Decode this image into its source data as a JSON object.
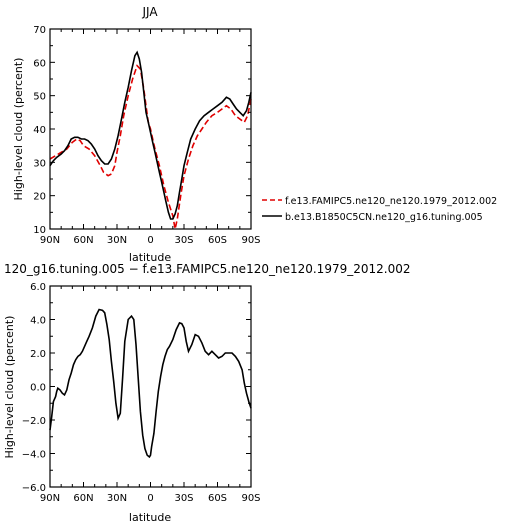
{
  "chart_data": [
    {
      "type": "line",
      "title": "JJA",
      "xlabel": "latitude",
      "ylabel": "High-level cloud (percent)",
      "xlim": [
        90,
        -90
      ],
      "ylim": [
        10,
        70
      ],
      "x_ticks": [
        {
          "value": 90,
          "label": "90N"
        },
        {
          "value": 60,
          "label": "60N"
        },
        {
          "value": 30,
          "label": "30N"
        },
        {
          "value": 0,
          "label": "0"
        },
        {
          "value": -30,
          "label": "30S"
        },
        {
          "value": -60,
          "label": "60S"
        },
        {
          "value": -90,
          "label": "90S"
        }
      ],
      "y_ticks": [
        10,
        20,
        30,
        40,
        50,
        60,
        70
      ],
      "y_tick_labels": [
        "10",
        "20",
        "30",
        "40",
        "50",
        "60",
        "70"
      ],
      "legend_position": "right",
      "series": [
        {
          "name": "f.e13.FAMIPC5.ne120_ne120.1979_2012.002",
          "color": "#e00000",
          "dash": "dashed",
          "x": [
            90,
            85,
            80,
            75,
            70,
            66,
            63,
            60,
            55,
            50,
            45,
            42,
            38,
            35,
            32,
            30,
            27,
            24,
            20,
            16,
            12,
            9,
            6,
            4,
            2,
            0,
            -2,
            -4,
            -8,
            -12,
            -16,
            -20,
            -22,
            -24,
            -27,
            -30,
            -34,
            -38,
            -42,
            -46,
            -50,
            -55,
            -60,
            -64,
            -68,
            -72,
            -76,
            -80,
            -84,
            -87,
            -90
          ],
          "y": [
            31,
            32,
            33,
            34,
            36,
            37,
            36.5,
            35,
            34,
            32,
            29,
            27,
            26,
            26.5,
            29,
            33,
            38,
            44,
            50,
            55,
            59,
            58,
            52,
            47,
            42,
            40,
            37,
            34,
            29,
            23,
            18,
            14,
            10,
            13,
            20,
            26,
            31,
            35,
            38,
            40,
            42,
            44,
            45,
            46,
            47,
            46,
            44,
            43,
            42,
            44,
            49
          ]
        },
        {
          "name": "b.e13.B1850C5CN.ne120_g16.tuning.005",
          "color": "#000000",
          "dash": "solid",
          "x": [
            90,
            87,
            84,
            80,
            77,
            74,
            71,
            68,
            65,
            62,
            59,
            56,
            53,
            50,
            47,
            44,
            41,
            38,
            35,
            32,
            29,
            26,
            23,
            20,
            17,
            14,
            12,
            10,
            8,
            6,
            4,
            2,
            0,
            -2,
            -4,
            -6,
            -8,
            -10,
            -12,
            -14,
            -16,
            -18,
            -20,
            -22,
            -24,
            -26,
            -28,
            -30,
            -33,
            -36,
            -40,
            -44,
            -48,
            -52,
            -56,
            -60,
            -64,
            -68,
            -71,
            -74,
            -77,
            -80,
            -83,
            -86,
            -88,
            -90
          ],
          "y": [
            29,
            30.5,
            31.5,
            32.5,
            33.5,
            35,
            37,
            37.5,
            37.5,
            37,
            37,
            36.5,
            35.5,
            34,
            32,
            30.5,
            29.5,
            29.5,
            31,
            34,
            38,
            43,
            48,
            52.5,
            57.5,
            62,
            63,
            61,
            57,
            51,
            45,
            42,
            39,
            36,
            33,
            30,
            27,
            24,
            21,
            18,
            15,
            13,
            13,
            14.5,
            17,
            21,
            25,
            29,
            33,
            37,
            40,
            42.5,
            44,
            45,
            46,
            47,
            48,
            49.5,
            49,
            47.5,
            46,
            45,
            44,
            45.5,
            48,
            51
          ]
        }
      ]
    },
    {
      "type": "line",
      "title": "120_g16.tuning.005 − f.e13.FAMIPC5.ne120_ne120.1979_2012.002",
      "xlabel": "latitude",
      "ylabel": "High-level cloud (percent)",
      "xlim": [
        90,
        -90
      ],
      "ylim": [
        -6,
        6
      ],
      "x_ticks": [
        {
          "value": 90,
          "label": "90N"
        },
        {
          "value": 60,
          "label": "60N"
        },
        {
          "value": 30,
          "label": "30N"
        },
        {
          "value": 0,
          "label": "0"
        },
        {
          "value": -30,
          "label": "30S"
        },
        {
          "value": -60,
          "label": "60S"
        },
        {
          "value": -90,
          "label": "90S"
        }
      ],
      "y_ticks": [
        -6,
        -4,
        -2,
        0,
        2,
        4,
        6
      ],
      "y_tick_labels": [
        "−6.0",
        "−4.0",
        "−2.0",
        "0.0",
        "2.0",
        "4.0",
        "6.0"
      ],
      "series": [
        {
          "name": "",
          "color": "#000000",
          "dash": "solid",
          "x": [
            90,
            88.5,
            87,
            85,
            84,
            83,
            81,
            79,
            77,
            75,
            73,
            71,
            69,
            67,
            65,
            63,
            61,
            59,
            57,
            55,
            52,
            49,
            46,
            43,
            41,
            39,
            37,
            35,
            33,
            31,
            29,
            27,
            25,
            23,
            20,
            17,
            15,
            13,
            11,
            9,
            7,
            5,
            3,
            1,
            0,
            -1,
            -3,
            -5,
            -7,
            -9,
            -11,
            -13,
            -15,
            -17,
            -20,
            -23,
            -26,
            -28,
            -30,
            -32,
            -34,
            -37,
            -40,
            -43,
            -46,
            -49,
            -52,
            -55,
            -58,
            -61,
            -64,
            -67,
            -70,
            -73,
            -76,
            -79,
            -82,
            -84,
            -86,
            -88,
            -90
          ],
          "y": [
            -2.6,
            -1.8,
            -0.9,
            -0.6,
            -0.3,
            -0.1,
            -0.2,
            -0.4,
            -0.5,
            -0.2,
            0.4,
            0.8,
            1.3,
            1.6,
            1.8,
            1.9,
            2.1,
            2.4,
            2.7,
            3.0,
            3.5,
            4.2,
            4.6,
            4.55,
            4.4,
            3.7,
            2.8,
            1.5,
            0.3,
            -1.0,
            -1.9,
            -1.6,
            0.5,
            2.7,
            4.0,
            4.2,
            4.0,
            2.5,
            0.5,
            -1.5,
            -2.9,
            -3.7,
            -4.1,
            -4.2,
            -4.1,
            -3.6,
            -2.8,
            -1.5,
            -0.3,
            0.6,
            1.3,
            1.8,
            2.2,
            2.4,
            2.8,
            3.4,
            3.8,
            3.75,
            3.5,
            2.7,
            2.1,
            2.5,
            3.1,
            3.0,
            2.6,
            2.1,
            1.9,
            2.1,
            1.9,
            1.7,
            1.8,
            2.0,
            2.0,
            2.0,
            1.8,
            1.5,
            1.0,
            0.2,
            -0.4,
            -0.9,
            -1.3
          ]
        }
      ]
    }
  ]
}
